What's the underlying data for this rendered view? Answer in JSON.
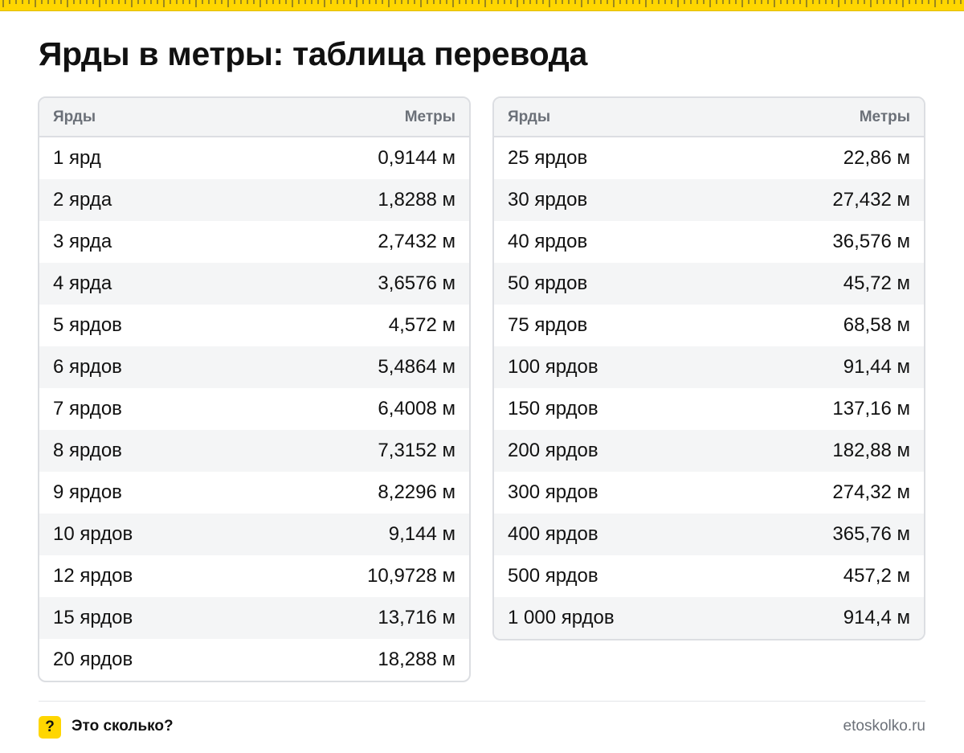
{
  "title": "Ярды в метры: таблица перевода",
  "colors": {
    "accent": "#ffd600",
    "border": "#dcdee2",
    "header_text": "#6b7078"
  },
  "table_left": {
    "header": {
      "from": "Ярды",
      "to": "Метры"
    },
    "rows": [
      {
        "yards": "1 ярд",
        "meters": "0,9144 м"
      },
      {
        "yards": "2 ярда",
        "meters": "1,8288 м"
      },
      {
        "yards": "3 ярда",
        "meters": "2,7432 м"
      },
      {
        "yards": "4 ярда",
        "meters": "3,6576 м"
      },
      {
        "yards": "5 ярдов",
        "meters": "4,572 м"
      },
      {
        "yards": "6 ярдов",
        "meters": "5,4864 м"
      },
      {
        "yards": "7 ярдов",
        "meters": "6,4008 м"
      },
      {
        "yards": "8 ярдов",
        "meters": "7,3152 м"
      },
      {
        "yards": "9 ярдов",
        "meters": "8,2296 м"
      },
      {
        "yards": "10 ярдов",
        "meters": "9,144 м"
      },
      {
        "yards": "12 ярдов",
        "meters": "10,9728 м"
      },
      {
        "yards": "15 ярдов",
        "meters": "13,716 м"
      },
      {
        "yards": "20 ярдов",
        "meters": "18,288 м"
      }
    ]
  },
  "table_right": {
    "header": {
      "from": "Ярды",
      "to": "Метры"
    },
    "rows": [
      {
        "yards": "25 ярдов",
        "meters": "22,86 м"
      },
      {
        "yards": "30 ярдов",
        "meters": "27,432 м"
      },
      {
        "yards": "40 ярдов",
        "meters": "36,576 м"
      },
      {
        "yards": "50 ярдов",
        "meters": "45,72 м"
      },
      {
        "yards": "75 ярдов",
        "meters": "68,58 м"
      },
      {
        "yards": "100 ярдов",
        "meters": "91,44 м"
      },
      {
        "yards": "150 ярдов",
        "meters": "137,16 м"
      },
      {
        "yards": "200 ярдов",
        "meters": "182,88 м"
      },
      {
        "yards": "300 ярдов",
        "meters": "274,32 м"
      },
      {
        "yards": "400 ярдов",
        "meters": "365,76 м"
      },
      {
        "yards": "500 ярдов",
        "meters": "457,2 м"
      },
      {
        "yards": "1 000 ярдов",
        "meters": "914,4 м"
      }
    ]
  },
  "footer": {
    "badge": "?",
    "brand": "Это сколько?",
    "site": "etoskolko.ru"
  }
}
